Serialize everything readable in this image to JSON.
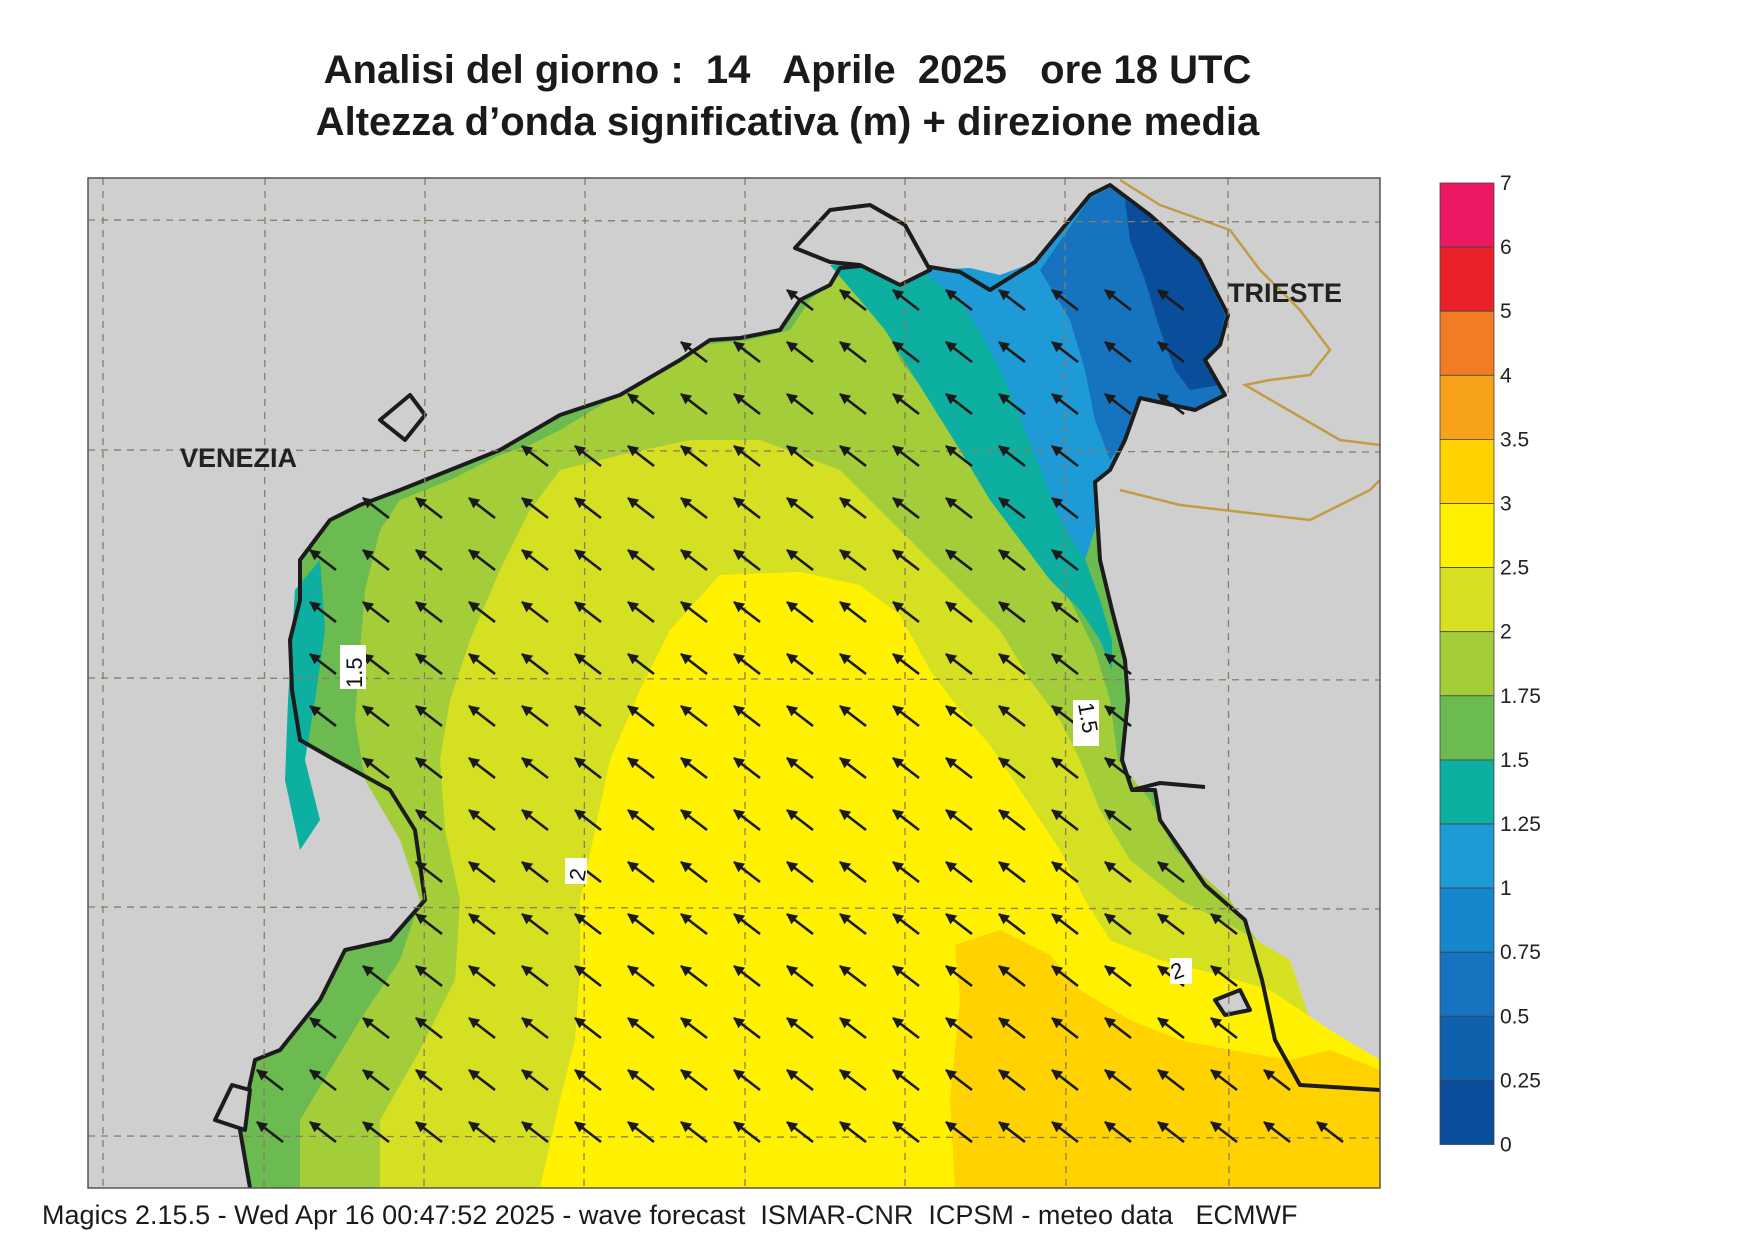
{
  "header": {
    "title_line1": "Analisi del giorno :  14   Aprile  2025   ore 18 UTC",
    "title_line2": "Altezza d’onda significativa (m) + direzione media"
  },
  "map": {
    "cities": {
      "venezia": "VENEZIA",
      "trieste": "TRIESTE"
    },
    "contour_labels": [
      "1.5",
      "1.5",
      "2",
      "2"
    ],
    "arrow_direction": "north-west",
    "land_color": "#cfcfcf",
    "grid_style": "dashed"
  },
  "legend": {
    "levels": [
      "7",
      "6",
      "5",
      "4",
      "3.5",
      "3",
      "2.5",
      "2",
      "1.75",
      "1.5",
      "1.25",
      "1",
      "0.75",
      "0.5",
      "0.25",
      "0"
    ],
    "colors_top_to_bottom": [
      "#ec1863",
      "#ea2128",
      "#f07d24",
      "#f7a21a",
      "#ffd200",
      "#fff100",
      "#d4e021",
      "#a3cd39",
      "#6bbb50",
      "#0dafa0",
      "#1e9bd7",
      "#1687cd",
      "#1573bf",
      "#0f61ad",
      "#0a4d9a"
    ]
  },
  "footer": {
    "text": "Magics 2.15.5 - Wed Apr 16 00:47:52 2025 - wave forecast  ISMAR-CNR  ICPSM - meteo data   ECMWF"
  }
}
